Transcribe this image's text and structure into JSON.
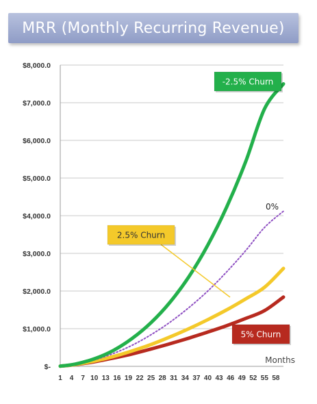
{
  "title": "MRR (Monthly Recurring Revenue)",
  "chart_data": {
    "type": "line",
    "title": "MRR (Monthly Recurring Revenue)",
    "xlabel": "Months",
    "ylabel": "",
    "ylim": [
      0,
      8000
    ],
    "xlim": [
      1,
      60
    ],
    "grid": true,
    "y_tick_labels": [
      "$-",
      "$1,000.0",
      "$2,000.0",
      "$3,000.0",
      "$4,000.0",
      "$5,000.0",
      "$6,000.0",
      "$7,000.0",
      "$8,000.0"
    ],
    "y_ticks": [
      0,
      1000,
      2000,
      3000,
      4000,
      5000,
      6000,
      7000,
      8000
    ],
    "x_tick_labels": [
      "1",
      "4",
      "7",
      "10",
      "13",
      "16",
      "19",
      "22",
      "25",
      "28",
      "31",
      "34",
      "37",
      "40",
      "43",
      "46",
      "49",
      "52",
      "55",
      "58"
    ],
    "x_ticks": [
      1,
      4,
      7,
      10,
      13,
      16,
      19,
      22,
      25,
      28,
      31,
      34,
      37,
      40,
      43,
      46,
      49,
      52,
      55,
      58
    ],
    "series": [
      {
        "name": "-2.5% Churn",
        "color": "#23b04b",
        "style": "solid",
        "x": [
          1,
          5,
          10,
          15,
          20,
          25,
          30,
          35,
          40,
          45,
          50,
          55,
          60
        ],
        "values": [
          5,
          60,
          200,
          420,
          740,
          1160,
          1700,
          2380,
          3220,
          4230,
          5430,
          6840,
          7500
        ]
      },
      {
        "name": "0%",
        "color": "#8e4fc2",
        "style": "dotted",
        "x": [
          1,
          5,
          10,
          15,
          20,
          25,
          30,
          35,
          40,
          45,
          50,
          55,
          60
        ],
        "values": [
          5,
          55,
          170,
          340,
          560,
          840,
          1170,
          1560,
          2000,
          2510,
          3070,
          3690,
          4120
        ]
      },
      {
        "name": "2.5% Churn",
        "color": "#f4c92a",
        "style": "solid",
        "x": [
          1,
          5,
          10,
          15,
          20,
          25,
          30,
          35,
          40,
          45,
          50,
          55,
          60
        ],
        "values": [
          5,
          50,
          140,
          260,
          410,
          580,
          780,
          1000,
          1240,
          1500,
          1790,
          2100,
          2600
        ]
      },
      {
        "name": "5% Churn",
        "color": "#b72a1f",
        "style": "solid",
        "x": [
          1,
          5,
          10,
          15,
          20,
          25,
          30,
          35,
          40,
          45,
          50,
          55,
          60
        ],
        "values": [
          5,
          45,
          120,
          220,
          330,
          460,
          600,
          750,
          910,
          1080,
          1270,
          1480,
          1840
        ]
      }
    ],
    "annotations": [
      {
        "text": "-2.5% Churn",
        "series": "-2.5% Churn",
        "box_color": "#23b04b",
        "text_color": "#ffffff"
      },
      {
        "text": "0%",
        "series": "0%",
        "box_color": "",
        "text_color": "#222222"
      },
      {
        "text": "2.5% Churn",
        "series": "2.5% Churn",
        "box_color": "#f4c92a",
        "text_color": "#333333"
      },
      {
        "text": "5% Churn",
        "series": "5% Churn",
        "box_color": "#b72a1f",
        "text_color": "#ffffff"
      }
    ]
  }
}
